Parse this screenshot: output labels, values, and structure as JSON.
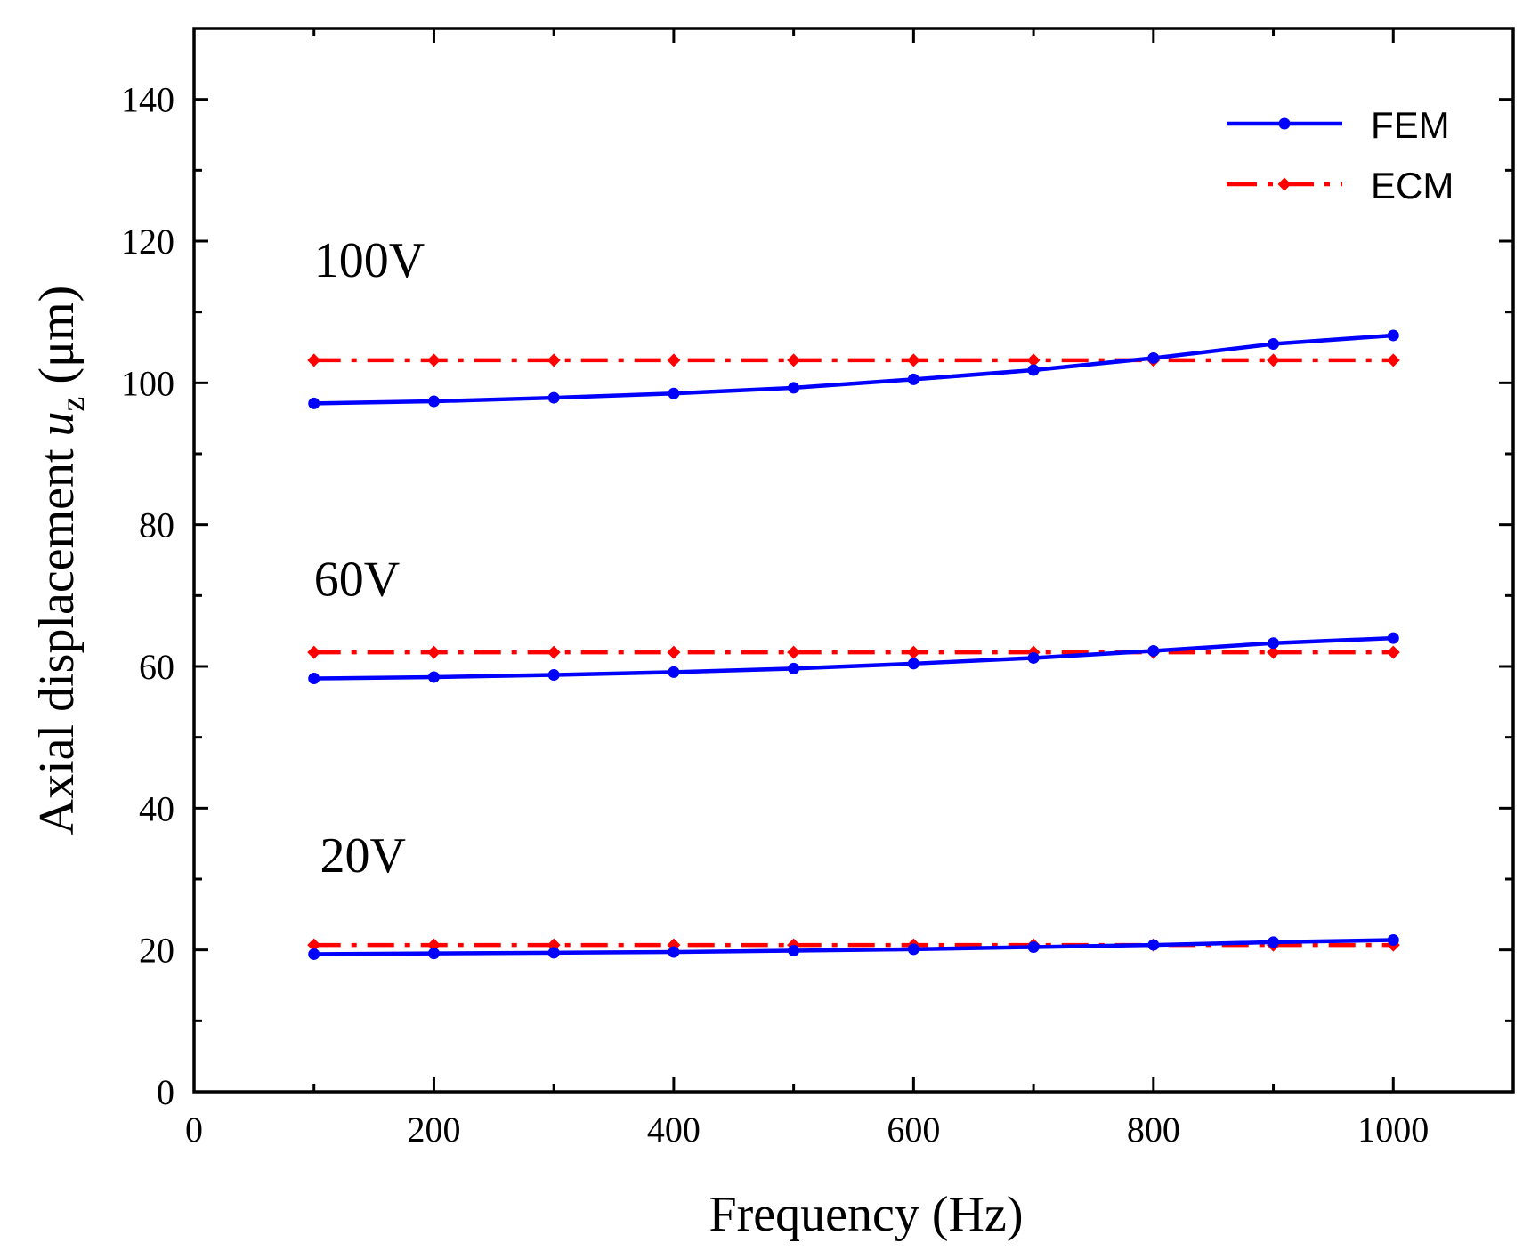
{
  "chart_data": {
    "type": "line",
    "title": "",
    "xlabel": "Frequency (Hz)",
    "ylabel": {
      "main": "Axial displacement ",
      "var": "u",
      "sub": "z",
      "unit": " (μm)"
    },
    "xlim": [
      0,
      1100
    ],
    "ylim": [
      0,
      150
    ],
    "xticks": [
      0,
      200,
      400,
      600,
      800,
      1000
    ],
    "yticks": [
      0,
      20,
      40,
      60,
      80,
      100,
      120,
      140
    ],
    "legend_position": "top-right",
    "x": [
      100,
      200,
      300,
      400,
      500,
      600,
      700,
      800,
      900,
      1000
    ],
    "series": [
      {
        "name": "FEM",
        "group": "100V",
        "color": "#0000ff",
        "style": "solid",
        "marker": "circle",
        "values": [
          97.1,
          97.4,
          97.9,
          98.5,
          99.3,
          100.5,
          101.8,
          103.5,
          105.5,
          106.7
        ]
      },
      {
        "name": "ECM",
        "group": "100V",
        "color": "#ff0000",
        "style": "dashdot",
        "marker": "diamond",
        "values": [
          103.2,
          103.2,
          103.2,
          103.2,
          103.2,
          103.2,
          103.2,
          103.2,
          103.2,
          103.2
        ]
      },
      {
        "name": "FEM",
        "group": "60V",
        "color": "#0000ff",
        "style": "solid",
        "marker": "circle",
        "values": [
          58.3,
          58.5,
          58.8,
          59.2,
          59.7,
          60.4,
          61.2,
          62.2,
          63.3,
          64.0
        ]
      },
      {
        "name": "ECM",
        "group": "60V",
        "color": "#ff0000",
        "style": "dashdot",
        "marker": "diamond",
        "values": [
          62.0,
          62.0,
          62.0,
          62.0,
          62.0,
          62.0,
          62.0,
          62.0,
          62.0,
          62.0
        ]
      },
      {
        "name": "FEM",
        "group": "20V",
        "color": "#0000ff",
        "style": "solid",
        "marker": "circle",
        "values": [
          19.4,
          19.5,
          19.6,
          19.7,
          19.9,
          20.1,
          20.4,
          20.7,
          21.1,
          21.4
        ]
      },
      {
        "name": "ECM",
        "group": "20V",
        "color": "#ff0000",
        "style": "dashdot",
        "marker": "diamond",
        "values": [
          20.7,
          20.7,
          20.7,
          20.7,
          20.7,
          20.7,
          20.7,
          20.7,
          20.7,
          20.7
        ]
      }
    ],
    "legend": [
      {
        "label": "FEM",
        "color": "#0000ff",
        "style": "solid",
        "marker": "circle"
      },
      {
        "label": "ECM",
        "color": "#ff0000",
        "style": "dashdot",
        "marker": "diamond"
      }
    ],
    "annotations": [
      {
        "text": "100V",
        "x": 100,
        "y": 115
      },
      {
        "text": "60V",
        "x": 100,
        "y": 70
      },
      {
        "text": "20V",
        "x": 105,
        "y": 31
      }
    ]
  }
}
